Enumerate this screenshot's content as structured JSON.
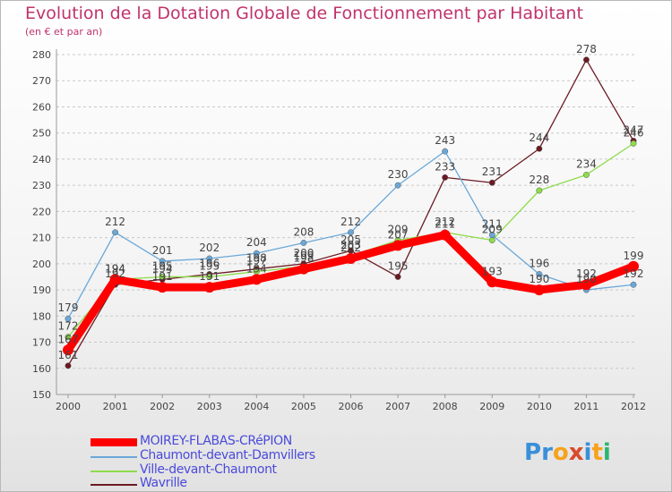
{
  "chart_data": {
    "type": "line",
    "title": "Evolution de la Dotation Globale de Fonctionnement par Habitant",
    "subtitle": "(en € et par an)",
    "xlabel": "",
    "ylabel": "",
    "ylim": [
      150,
      280
    ],
    "ytick_step": 10,
    "grid": "horizontal-dashed",
    "legend_position": "bottom-left",
    "categories": [
      "2000",
      "2001",
      "2002",
      "2003",
      "2004",
      "2005",
      "2006",
      "2007",
      "2008",
      "2009",
      "2010",
      "2011",
      "2012"
    ],
    "series": [
      {
        "name": "Wavrille",
        "color": "#6b1a22",
        "values": [
          161,
          192,
          194,
          196,
          198,
          200,
          205,
          195,
          233,
          231,
          244,
          278,
          247
        ]
      },
      {
        "name": "Ville-devant-Chaumont",
        "color": "#8edc4a",
        "values": [
          172,
          194,
          195,
          195,
          197,
          199,
          203,
          209,
          212,
          209,
          228,
          234,
          246
        ]
      },
      {
        "name": "Chaumont-devant-Damvillers",
        "color": "#6aa8d8",
        "values": [
          179,
          212,
          201,
          202,
          204,
          208,
          212,
          230,
          243,
          211,
          196,
          190,
          192
        ]
      },
      {
        "name": "MOIREY-FLABAS-CRéPION",
        "color": "#ff0000",
        "values": [
          167,
          194,
          191,
          191,
          194,
          198,
          202,
          207,
          211,
          193,
          190,
          192,
          199
        ]
      }
    ]
  },
  "legend": [
    {
      "label": "MOIREY-FLABAS-CRéPION",
      "color": "#ff0000"
    },
    {
      "label": "Chaumont-devant-Damvillers",
      "color": "#6aa8d8"
    },
    {
      "label": "Ville-devant-Chaumont",
      "color": "#8edc4a"
    },
    {
      "label": "Wavrille",
      "color": "#6b1a22"
    }
  ],
  "brand": {
    "chars": [
      "P",
      "r",
      "o",
      "x",
      "i",
      "t",
      "i"
    ],
    "colors": [
      "#3a8fd9",
      "#3a8fd9",
      "#f7a21b",
      "#d94a2b",
      "#3a8fd9",
      "#f7a21b",
      "#2bb673"
    ]
  }
}
